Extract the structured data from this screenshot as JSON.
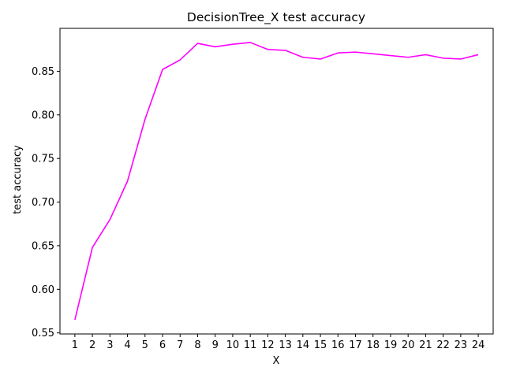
{
  "chart_data": {
    "type": "line",
    "title": "DecisionTree_X test accuracy",
    "xlabel": "X",
    "ylabel": "test accuracy",
    "x": [
      1,
      2,
      3,
      4,
      5,
      6,
      7,
      8,
      9,
      10,
      11,
      12,
      13,
      14,
      15,
      16,
      17,
      18,
      19,
      20,
      21,
      22,
      23,
      24
    ],
    "series": [
      {
        "values": [
          0.565,
          0.648,
          0.68,
          0.724,
          0.795,
          0.852,
          0.863,
          0.882,
          0.878,
          0.881,
          0.883,
          0.875,
          0.874,
          0.866,
          0.864,
          0.871,
          0.872,
          0.87,
          0.868,
          0.866,
          0.869,
          0.865,
          0.864,
          0.869
        ],
        "color": "#ff00ff"
      }
    ],
    "xlim": [
      0.15,
      24.85
    ],
    "ylim": [
      0.5488,
      0.8992
    ],
    "yticks": [
      0.55,
      0.6,
      0.65,
      0.7,
      0.75,
      0.8,
      0.85
    ],
    "ytick_labels": [
      "0.55",
      "0.60",
      "0.65",
      "0.70",
      "0.75",
      "0.80",
      "0.85"
    ],
    "xticks": [
      1,
      2,
      3,
      4,
      5,
      6,
      7,
      8,
      9,
      10,
      11,
      12,
      13,
      14,
      15,
      16,
      17,
      18,
      19,
      20,
      21,
      22,
      23,
      24
    ],
    "grid": false,
    "legend": "none"
  }
}
